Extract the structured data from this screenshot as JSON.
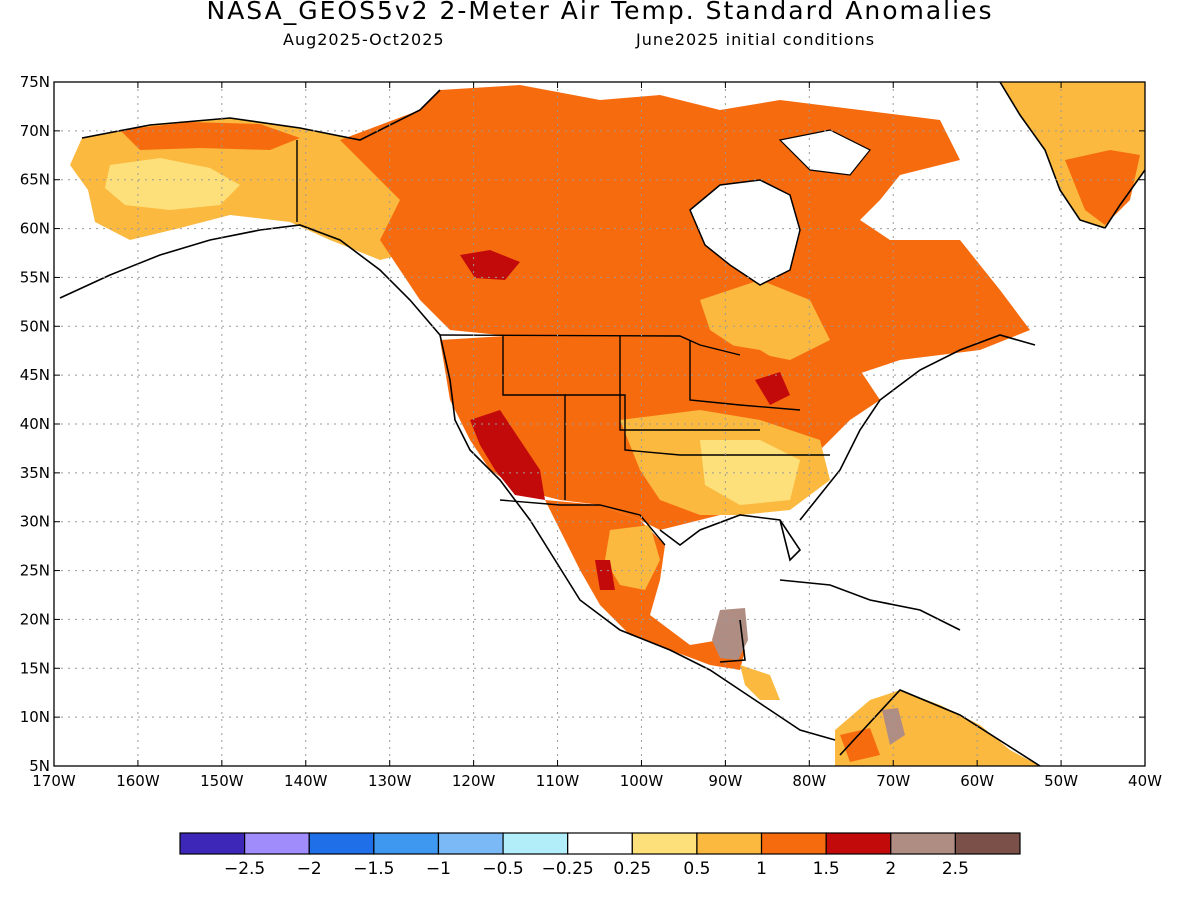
{
  "title": "NASA_GEOS5v2 2-Meter Air Temp. Standard Anomalies",
  "subtitle_left": "Aug2025-Oct2025",
  "subtitle_right": "June2025 initial conditions",
  "lat_labels": [
    "75N",
    "70N",
    "65N",
    "60N",
    "55N",
    "50N",
    "45N",
    "40N",
    "35N",
    "30N",
    "25N",
    "20N",
    "15N",
    "10N",
    "5N"
  ],
  "lon_labels": [
    "170W",
    "160W",
    "150W",
    "140W",
    "130W",
    "120W",
    "110W",
    "100W",
    "90W",
    "80W",
    "70W",
    "60W",
    "50W",
    "40W"
  ],
  "colorbar": {
    "colors": [
      "#3d27b8",
      "#a08cfb",
      "#1f6fe8",
      "#3f98f0",
      "#7ab8f6",
      "#b2eefa",
      "#ffffff",
      "#fde07a",
      "#fbb940",
      "#f76b0f",
      "#c20a0a",
      "#b08d83",
      "#7a5048"
    ],
    "labels": [
      "-2.5",
      "-2",
      "-1.5",
      "-1",
      "-0.5",
      "-0.25",
      "0.25",
      "0.5",
      "1",
      "1.5",
      "2",
      "2.5"
    ]
  },
  "colors": {
    "light_warm": "#fde07a",
    "warm": "#fbb940",
    "hot": "#f76b0f",
    "very_hot": "#c20a0a",
    "extreme": "#b08d83"
  }
}
